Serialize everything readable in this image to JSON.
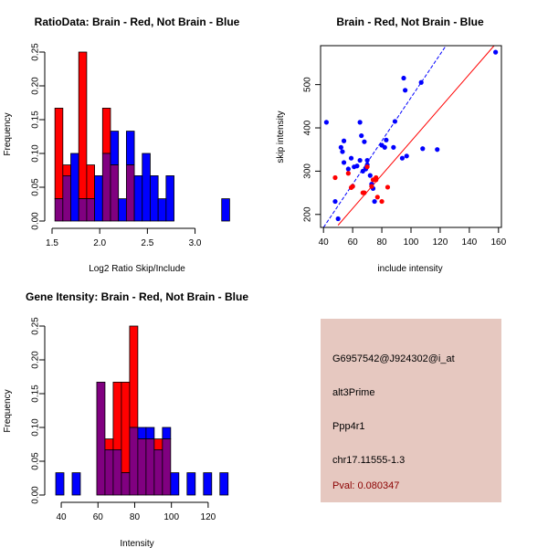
{
  "colors": {
    "red": "#ff0000",
    "blue": "#0000ff",
    "purple": "#800080",
    "panel": "#e6c8c0",
    "pval": "#8b0000"
  },
  "chart_data": [
    {
      "type": "bar",
      "subtype": "overlaid-histogram",
      "title": "RatioData: Brain - Red, Not Brain - Blue",
      "xlabel": "Log2 Ratio Skip/Include",
      "ylabel": "Frequency",
      "xlim": [
        1.5,
        3.33
      ],
      "ylim": [
        0,
        0.25
      ],
      "xticks": [
        "1.5",
        "2.0",
        "2.5",
        "3.0"
      ],
      "xtick_values": [
        1.5,
        2.0,
        2.5,
        3.0
      ],
      "yticks": [
        "0.00",
        "0.05",
        "0.10",
        "0.15",
        "0.20",
        "0.25"
      ],
      "ytick_values": [
        0,
        0.05,
        0.1,
        0.15,
        0.2,
        0.25
      ],
      "bin_start": 1.53,
      "bin_width": 0.0833,
      "series": [
        {
          "name": "Brain",
          "color": "red",
          "values": [
            0.167,
            0.083,
            0,
            0.25,
            0.083,
            0,
            0.167,
            0.083,
            0,
            0.083,
            0,
            0,
            0,
            0,
            0,
            0,
            0,
            0,
            0,
            0,
            0,
            0
          ]
        },
        {
          "name": "Not Brain",
          "color": "blue",
          "values": [
            0.033,
            0.067,
            0.1,
            0.033,
            0.033,
            0.067,
            0.1,
            0.133,
            0.033,
            0.133,
            0.067,
            0.1,
            0.067,
            0.033,
            0.067,
            0,
            0,
            0,
            0,
            0,
            0,
            0.033
          ]
        }
      ]
    },
    {
      "type": "scatter",
      "title": "Brain - Red, Not Brain - Blue",
      "xlabel": "include intensity",
      "ylabel": "skip intensity",
      "xlim": [
        38,
        162
      ],
      "ylim": [
        170,
        590
      ],
      "xticks": [
        "40",
        "60",
        "80",
        "100",
        "120",
        "140",
        "160"
      ],
      "xtick_values": [
        40,
        60,
        80,
        100,
        120,
        140,
        160
      ],
      "yticks": [
        "200",
        "300",
        "400",
        "500"
      ],
      "ytick_values": [
        200,
        300,
        400,
        500
      ],
      "series": [
        {
          "name": "Not Brain",
          "color": "blue",
          "points": [
            [
              42,
              413
            ],
            [
              48,
              230
            ],
            [
              50,
              190
            ],
            [
              52,
              355
            ],
            [
              53,
              345
            ],
            [
              54,
              370
            ],
            [
              54,
              320
            ],
            [
              57,
              305
            ],
            [
              59,
              330
            ],
            [
              60,
              265
            ],
            [
              61,
              310
            ],
            [
              63,
              312
            ],
            [
              65,
              325
            ],
            [
              65,
              413
            ],
            [
              66,
              382
            ],
            [
              67,
              300
            ],
            [
              68,
              368
            ],
            [
              69,
              305
            ],
            [
              70,
              325
            ],
            [
              70,
              315
            ],
            [
              72,
              290
            ],
            [
              73,
              270
            ],
            [
              74,
              260
            ],
            [
              75,
              230
            ],
            [
              80,
              360
            ],
            [
              82,
              355
            ],
            [
              83,
              372
            ],
            [
              88,
              355
            ],
            [
              89,
              415
            ],
            [
              94,
              330
            ],
            [
              95,
              515
            ],
            [
              96,
              487
            ],
            [
              97,
              335
            ],
            [
              107,
              505
            ],
            [
              108,
              352
            ],
            [
              118,
              350
            ],
            [
              158,
              575
            ]
          ]
        },
        {
          "name": "Brain",
          "color": "red",
          "points": [
            [
              48,
              285
            ],
            [
              57,
              295
            ],
            [
              59,
              262
            ],
            [
              60,
              265
            ],
            [
              67,
              250
            ],
            [
              68,
              250
            ],
            [
              70,
              310
            ],
            [
              73,
              265
            ],
            [
              74,
              280
            ],
            [
              76,
              285
            ],
            [
              76,
              280
            ],
            [
              77,
              240
            ],
            [
              80,
              230
            ],
            [
              84,
              263
            ]
          ]
        }
      ],
      "lines": [
        {
          "name": "blue-diagonal",
          "color": "blue",
          "dashed": true,
          "points": [
            [
              40,
              170
            ],
            [
              124,
              590
            ]
          ]
        },
        {
          "name": "red-diagonal",
          "color": "red",
          "dashed": false,
          "points": [
            [
              50,
              175
            ],
            [
              157,
              590
            ]
          ]
        }
      ]
    },
    {
      "type": "bar",
      "subtype": "overlaid-histogram",
      "title": "Gene Itensity: Brain - Red, Not Brain - Blue",
      "xlabel": "Intensity",
      "ylabel": "Frequency",
      "xlim": [
        35,
        130
      ],
      "ylim": [
        0,
        0.25
      ],
      "xticks": [
        "40",
        "60",
        "80",
        "100",
        "120"
      ],
      "xtick_values": [
        40,
        60,
        80,
        100,
        120
      ],
      "yticks": [
        "0.00",
        "0.05",
        "0.10",
        "0.15",
        "0.20",
        "0.25"
      ],
      "ytick_values": [
        0,
        0.05,
        0.1,
        0.15,
        0.2,
        0.25
      ],
      "bin_start": 37,
      "bin_width": 4.47,
      "series": [
        {
          "name": "Brain",
          "color": "red",
          "values": [
            0,
            0,
            0,
            0,
            0,
            0.167,
            0.083,
            0.167,
            0.167,
            0.25,
            0.083,
            0.083,
            0.083,
            0.083,
            0,
            0,
            0,
            0,
            0,
            0,
            0
          ]
        },
        {
          "name": "Not Brain",
          "color": "blue",
          "values": [
            0.033,
            0,
            0.033,
            0,
            0,
            0.167,
            0.067,
            0.067,
            0.033,
            0.1,
            0.1,
            0.1,
            0.067,
            0.1,
            0.033,
            0,
            0.033,
            0,
            0.033,
            0,
            0.033
          ]
        }
      ]
    }
  ],
  "info": {
    "probe": "G6957542@J924302@i_at",
    "event": "alt3Prime",
    "gene": "Ppp4r1",
    "location": "chr17.11555-1.3",
    "pval": "Pval: 0.080347"
  }
}
